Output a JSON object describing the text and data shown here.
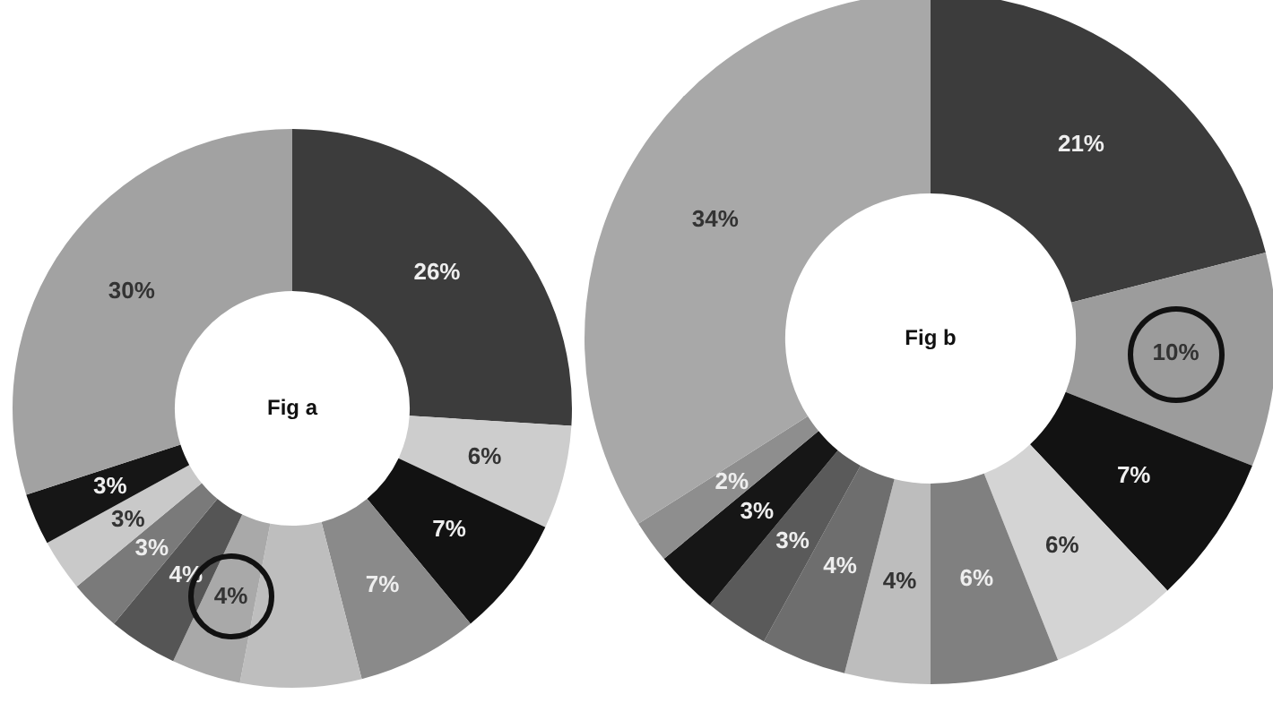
{
  "chart_data": [
    {
      "type": "donut",
      "title": "Fig a",
      "categories": [
        null,
        null,
        null,
        null,
        null,
        null,
        null,
        null,
        null,
        null,
        null
      ],
      "values": [
        26,
        6,
        7,
        7,
        7,
        4,
        4,
        3,
        3,
        3,
        30
      ],
      "colors": [
        "#3c3c3c",
        "#cdcdcd",
        "#121212",
        "#8a8a8a",
        "#bebebe",
        "#a9a9a9",
        "#555555",
        "#7a7a7a",
        "#c9c9c9",
        "#161616",
        "#a2a2a2"
      ],
      "value_labels": [
        "26%",
        "6%",
        "7%",
        "7%",
        null,
        "4%",
        "4%",
        "3%",
        "3%",
        "3%",
        "30%"
      ],
      "legend": false
    },
    {
      "type": "donut",
      "title": "Fig b",
      "categories": [
        null,
        null,
        null,
        null,
        null,
        null,
        null,
        null,
        null,
        null,
        null
      ],
      "values": [
        21,
        10,
        7,
        6,
        6,
        4,
        4,
        3,
        3,
        2,
        34
      ],
      "colors": [
        "#3c3c3c",
        "#9c9c9c",
        "#121212",
        "#d4d4d4",
        "#808080",
        "#bdbdbd",
        "#6e6e6e",
        "#5a5a5a",
        "#161616",
        "#8e8e8e",
        "#a8a8a8"
      ],
      "value_labels": [
        "21%",
        "10%",
        "7%",
        "6%",
        "6%",
        "4%",
        "4%",
        "3%",
        "3%",
        "2%",
        "34%"
      ],
      "legend": false
    }
  ]
}
